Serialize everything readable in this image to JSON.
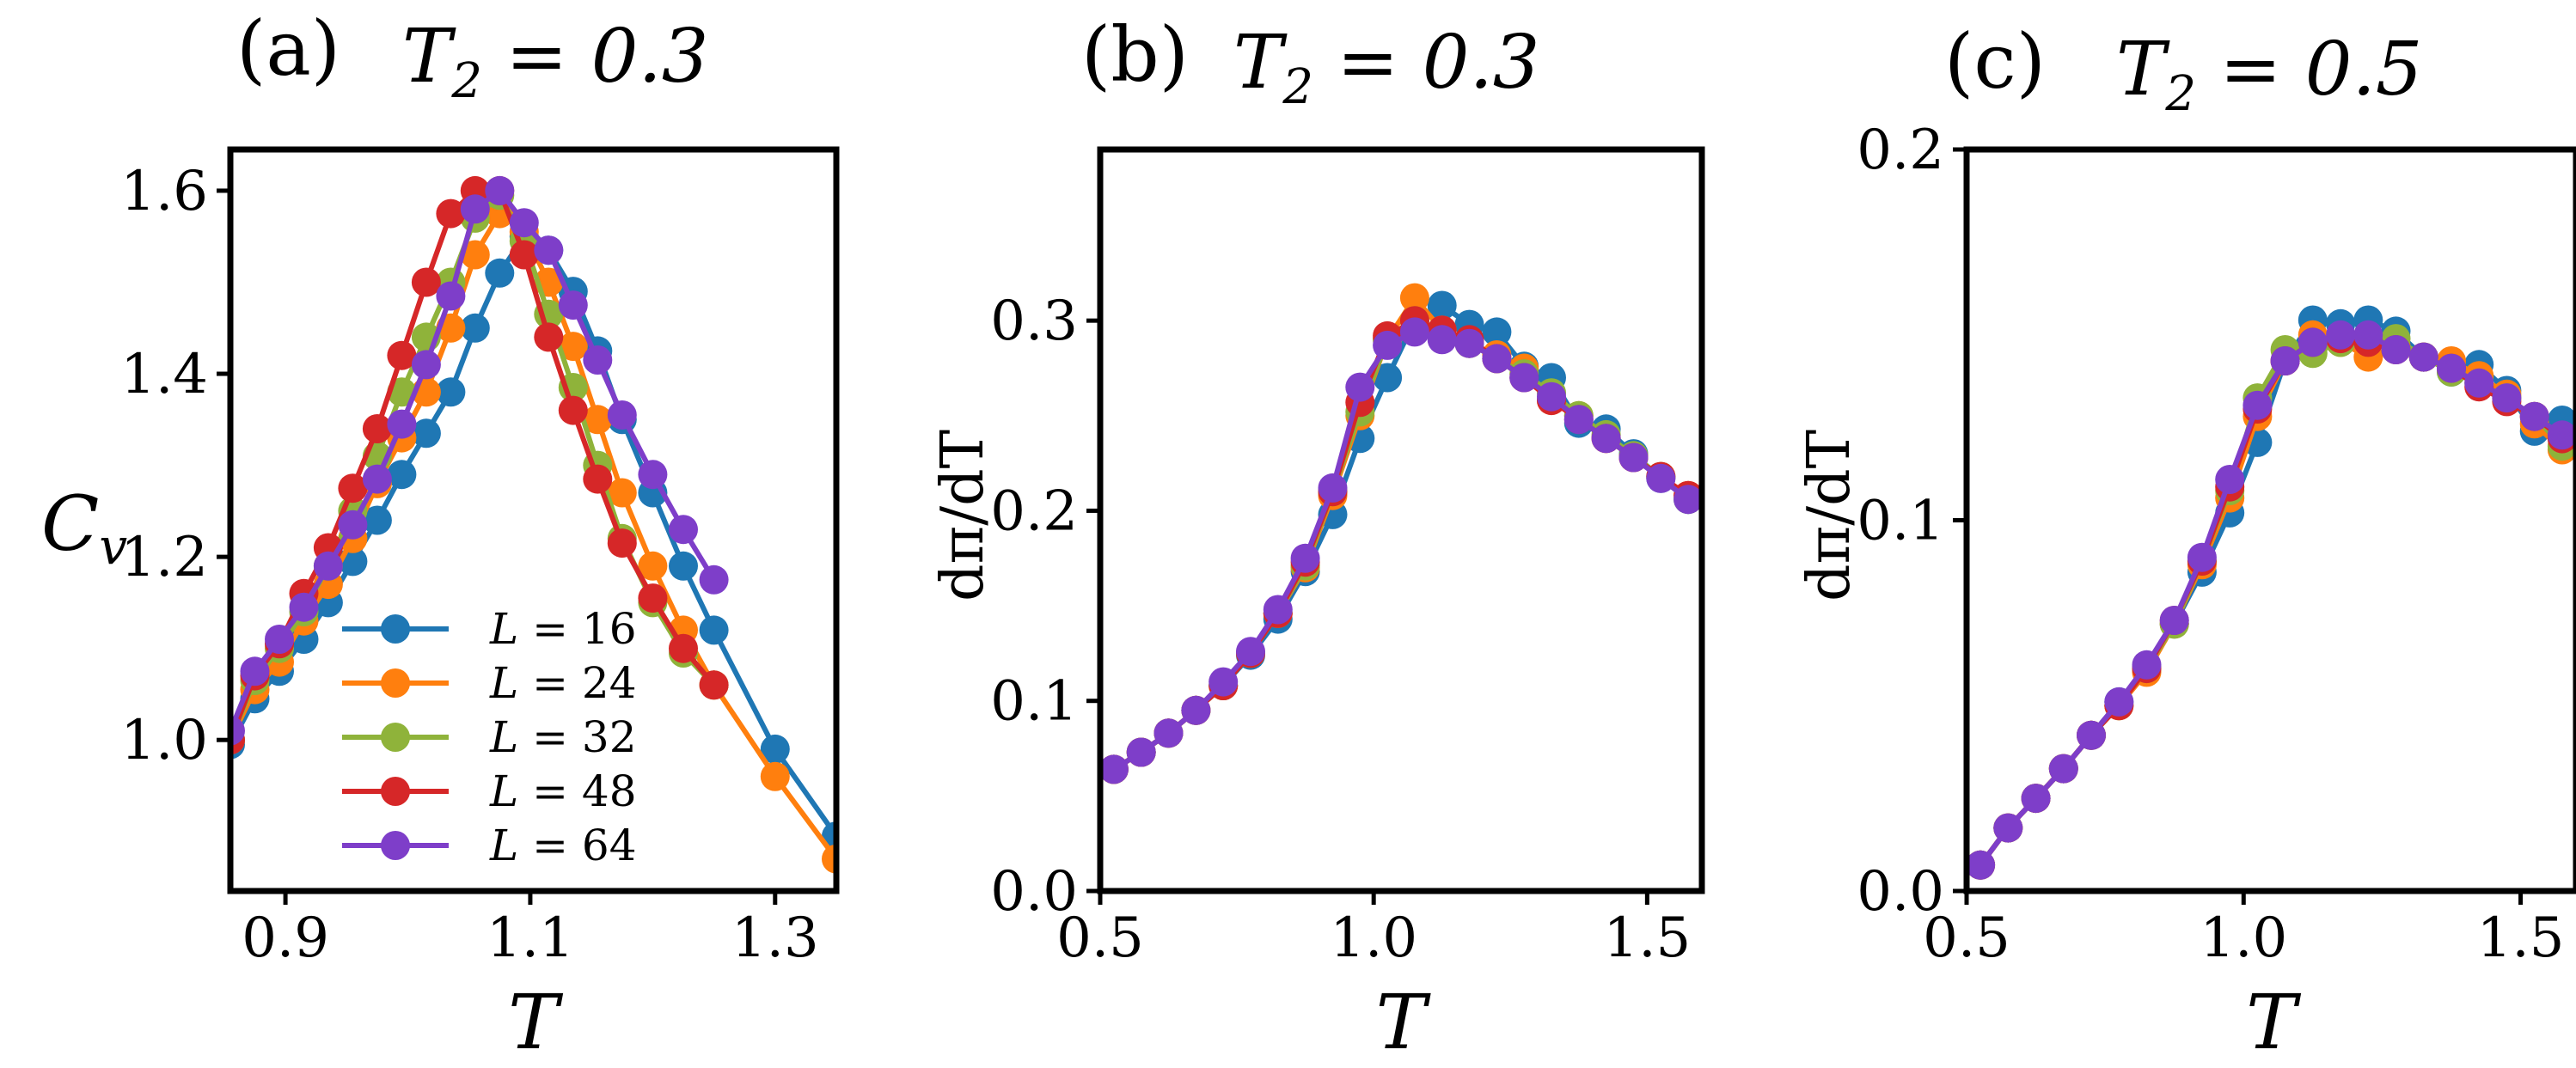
{
  "chart_data": [
    {
      "type": "line",
      "panel": "(a)",
      "title": "T_2 = 0.3",
      "title_parts": {
        "letter": "(a)",
        "main": "T",
        "sub": "2",
        "rest": " = 0.3"
      },
      "xlabel": "T",
      "ylabel": "C_v",
      "ylabel_parts": {
        "main": "C",
        "sub": "v"
      },
      "xlim": [
        0.855,
        1.35
      ],
      "ylim": [
        0.835,
        1.645
      ],
      "xticks": [
        0.9,
        1.1,
        1.3
      ],
      "xtick_labels": [
        "0.9",
        "1.1",
        "1.3"
      ],
      "yticks": [
        1.0,
        1.2,
        1.4,
        1.6
      ],
      "ytick_labels": [
        "1.0",
        "1.2",
        "1.4",
        "1.6"
      ],
      "legend_position": "lower-left",
      "series": [
        {
          "name": "L = 16",
          "legend": {
            "main": "L",
            "rest": " = 16"
          },
          "color": "#1f77b4",
          "x": [
            0.855,
            0.875,
            0.895,
            0.915,
            0.935,
            0.955,
            0.975,
            0.995,
            1.015,
            1.035,
            1.055,
            1.075,
            1.095,
            1.115,
            1.135,
            1.155,
            1.175,
            1.2,
            1.225,
            1.25,
            1.3,
            1.35
          ],
          "y": [
            0.995,
            1.045,
            1.075,
            1.11,
            1.15,
            1.195,
            1.24,
            1.29,
            1.335,
            1.38,
            1.45,
            1.51,
            1.55,
            1.535,
            1.49,
            1.425,
            1.35,
            1.27,
            1.19,
            1.12,
            0.99,
            0.895
          ]
        },
        {
          "name": "L = 24",
          "legend": {
            "main": "L",
            "rest": " = 24"
          },
          "color": "#ff7f0e",
          "x": [
            0.855,
            0.875,
            0.895,
            0.915,
            0.935,
            0.955,
            0.975,
            0.995,
            1.015,
            1.035,
            1.055,
            1.075,
            1.095,
            1.115,
            1.135,
            1.155,
            1.175,
            1.2,
            1.225,
            1.25,
            1.3,
            1.35
          ],
          "y": [
            1.0,
            1.055,
            1.085,
            1.13,
            1.17,
            1.22,
            1.28,
            1.33,
            1.38,
            1.45,
            1.53,
            1.575,
            1.555,
            1.5,
            1.43,
            1.35,
            1.27,
            1.19,
            1.12,
            1.06,
            0.96,
            0.87
          ]
        },
        {
          "name": "L = 32",
          "legend": {
            "main": "L",
            "rest": " = 32"
          },
          "color": "#8fb33a",
          "x": [
            0.855,
            0.875,
            0.895,
            0.915,
            0.935,
            0.955,
            0.975,
            0.995,
            1.015,
            1.035,
            1.055,
            1.075,
            1.095,
            1.115,
            1.135,
            1.155,
            1.175,
            1.2,
            1.225,
            1.25
          ],
          "y": [
            1.0,
            1.065,
            1.1,
            1.14,
            1.19,
            1.25,
            1.31,
            1.38,
            1.44,
            1.5,
            1.57,
            1.595,
            1.545,
            1.465,
            1.385,
            1.3,
            1.22,
            1.15,
            1.095,
            1.06
          ]
        },
        {
          "name": "L = 48",
          "legend": {
            "main": "L",
            "rest": " = 48"
          },
          "color": "#d62728",
          "x": [
            0.855,
            0.875,
            0.895,
            0.915,
            0.935,
            0.955,
            0.975,
            0.995,
            1.015,
            1.035,
            1.055,
            1.075,
            1.095,
            1.115,
            1.135,
            1.155,
            1.175,
            1.2,
            1.225,
            1.25
          ],
          "y": [
            1.0,
            1.07,
            1.105,
            1.16,
            1.21,
            1.275,
            1.34,
            1.42,
            1.5,
            1.575,
            1.6,
            1.6,
            1.53,
            1.44,
            1.36,
            1.285,
            1.215,
            1.155,
            1.1,
            1.06
          ]
        },
        {
          "name": "L = 64",
          "legend": {
            "main": "L",
            "rest": " = 64"
          },
          "color": "#7e3ec9",
          "x": [
            0.855,
            0.875,
            0.895,
            0.915,
            0.935,
            0.955,
            0.975,
            0.995,
            1.015,
            1.035,
            1.055,
            1.075,
            1.095,
            1.115,
            1.135,
            1.155,
            1.175,
            1.2,
            1.225,
            1.25
          ],
          "y": [
            1.01,
            1.075,
            1.11,
            1.145,
            1.19,
            1.235,
            1.285,
            1.345,
            1.41,
            1.485,
            1.58,
            1.6,
            1.565,
            1.535,
            1.475,
            1.415,
            1.355,
            1.29,
            1.23,
            1.175
          ]
        }
      ]
    },
    {
      "type": "line",
      "panel": "(b)",
      "title": "T_2 = 0.3",
      "title_parts": {
        "letter": "(b)",
        "main": "T",
        "sub": "2",
        "rest": " = 0.3"
      },
      "xlabel": "T",
      "ylabel": "dπ/dT",
      "xlim": [
        0.5,
        1.6
      ],
      "ylim": [
        0.0,
        0.39
      ],
      "xticks": [
        0.5,
        1.0,
        1.5
      ],
      "xtick_labels": [
        "0.5",
        "1.0",
        "1.5"
      ],
      "yticks": [
        0.0,
        0.1,
        0.2,
        0.3
      ],
      "ytick_labels": [
        "0.0",
        "0.1",
        "0.2",
        "0.3"
      ],
      "series": [
        {
          "name": "L = 16",
          "color": "#1f77b4",
          "x": [
            0.525,
            0.575,
            0.625,
            0.675,
            0.725,
            0.775,
            0.825,
            0.875,
            0.925,
            0.975,
            1.025,
            1.075,
            1.125,
            1.175,
            1.225,
            1.275,
            1.325,
            1.375,
            1.425,
            1.475,
            1.525,
            1.575
          ],
          "y": [
            0.064,
            0.073,
            0.083,
            0.095,
            0.108,
            0.124,
            0.143,
            0.168,
            0.198,
            0.238,
            0.27,
            0.3,
            0.308,
            0.298,
            0.294,
            0.276,
            0.27,
            0.246,
            0.243,
            0.23,
            0.217,
            0.206
          ]
        },
        {
          "name": "L = 24",
          "color": "#ff7f0e",
          "x": [
            0.525,
            0.575,
            0.625,
            0.675,
            0.725,
            0.775,
            0.825,
            0.875,
            0.925,
            0.975,
            1.025,
            1.075,
            1.125,
            1.175,
            1.225,
            1.275,
            1.325,
            1.375,
            1.425,
            1.475,
            1.525,
            1.575
          ],
          "y": [
            0.064,
            0.073,
            0.083,
            0.095,
            0.108,
            0.125,
            0.146,
            0.17,
            0.208,
            0.25,
            0.29,
            0.312,
            0.295,
            0.288,
            0.282,
            0.275,
            0.258,
            0.25,
            0.238,
            0.228,
            0.218,
            0.208
          ]
        },
        {
          "name": "L = 32",
          "color": "#8fb33a",
          "x": [
            0.525,
            0.575,
            0.625,
            0.675,
            0.725,
            0.775,
            0.825,
            0.875,
            0.925,
            0.975,
            1.025,
            1.075,
            1.125,
            1.175,
            1.225,
            1.275,
            1.325,
            1.375,
            1.425,
            1.475,
            1.525,
            1.575
          ],
          "y": [
            0.064,
            0.073,
            0.083,
            0.095,
            0.108,
            0.125,
            0.146,
            0.171,
            0.21,
            0.252,
            0.29,
            0.3,
            0.292,
            0.288,
            0.28,
            0.272,
            0.262,
            0.25,
            0.24,
            0.229,
            0.218,
            0.206
          ]
        },
        {
          "name": "L = 48",
          "color": "#d62728",
          "x": [
            0.525,
            0.575,
            0.625,
            0.675,
            0.725,
            0.775,
            0.825,
            0.875,
            0.925,
            0.975,
            1.025,
            1.075,
            1.125,
            1.175,
            1.225,
            1.275,
            1.325,
            1.375,
            1.425,
            1.475,
            1.525,
            1.575
          ],
          "y": [
            0.064,
            0.073,
            0.083,
            0.095,
            0.108,
            0.125,
            0.146,
            0.173,
            0.21,
            0.257,
            0.292,
            0.3,
            0.295,
            0.29,
            0.28,
            0.27,
            0.258,
            0.248,
            0.238,
            0.228,
            0.218,
            0.208
          ]
        },
        {
          "name": "L = 64",
          "color": "#7e3ec9",
          "x": [
            0.525,
            0.575,
            0.625,
            0.675,
            0.725,
            0.775,
            0.825,
            0.875,
            0.925,
            0.975,
            1.025,
            1.075,
            1.125,
            1.175,
            1.225,
            1.275,
            1.325,
            1.375,
            1.425,
            1.475,
            1.525,
            1.575
          ],
          "y": [
            0.064,
            0.073,
            0.083,
            0.095,
            0.11,
            0.126,
            0.148,
            0.175,
            0.212,
            0.265,
            0.287,
            0.294,
            0.29,
            0.288,
            0.28,
            0.27,
            0.26,
            0.248,
            0.238,
            0.228,
            0.217,
            0.206
          ]
        }
      ]
    },
    {
      "type": "line",
      "panel": "(c)",
      "title": "T_2 = 0.5",
      "title_parts": {
        "letter": "(c)",
        "main": "T",
        "sub": "2",
        "rest": " = 0.5"
      },
      "xlabel": "T",
      "ylabel": "dπ/dT",
      "xlim": [
        0.5,
        1.6
      ],
      "ylim": [
        0.0,
        0.2
      ],
      "xticks": [
        0.5,
        1.0,
        1.5
      ],
      "xtick_labels": [
        "0.5",
        "1.0",
        "1.5"
      ],
      "yticks": [
        0.0,
        0.1,
        0.2
      ],
      "ytick_labels": [
        "0.0",
        "0.1",
        "0.2"
      ],
      "series": [
        {
          "name": "L = 16",
          "color": "#1f77b4",
          "x": [
            0.525,
            0.575,
            0.625,
            0.675,
            0.725,
            0.775,
            0.825,
            0.875,
            0.925,
            0.975,
            1.025,
            1.075,
            1.125,
            1.175,
            1.225,
            1.275,
            1.325,
            1.375,
            1.425,
            1.475,
            1.525,
            1.575
          ],
          "y": [
            0.007,
            0.017,
            0.025,
            0.033,
            0.042,
            0.051,
            0.06,
            0.072,
            0.086,
            0.102,
            0.121,
            0.143,
            0.154,
            0.153,
            0.154,
            0.151,
            0.144,
            0.14,
            0.142,
            0.135,
            0.124,
            0.127
          ]
        },
        {
          "name": "L = 24",
          "color": "#ff7f0e",
          "x": [
            0.525,
            0.575,
            0.625,
            0.675,
            0.725,
            0.775,
            0.825,
            0.875,
            0.925,
            0.975,
            1.025,
            1.075,
            1.125,
            1.175,
            1.225,
            1.275,
            1.325,
            1.375,
            1.425,
            1.475,
            1.525,
            1.575
          ],
          "y": [
            0.007,
            0.017,
            0.025,
            0.033,
            0.042,
            0.05,
            0.059,
            0.072,
            0.088,
            0.106,
            0.128,
            0.143,
            0.15,
            0.148,
            0.144,
            0.147,
            0.144,
            0.143,
            0.139,
            0.134,
            0.126,
            0.119
          ]
        },
        {
          "name": "L = 32",
          "color": "#8fb33a",
          "x": [
            0.525,
            0.575,
            0.625,
            0.675,
            0.725,
            0.775,
            0.825,
            0.875,
            0.925,
            0.975,
            1.025,
            1.075,
            1.125,
            1.175,
            1.225,
            1.275,
            1.325,
            1.375,
            1.425,
            1.475,
            1.525,
            1.575
          ],
          "y": [
            0.007,
            0.017,
            0.025,
            0.033,
            0.042,
            0.05,
            0.06,
            0.072,
            0.089,
            0.108,
            0.133,
            0.146,
            0.145,
            0.148,
            0.149,
            0.149,
            0.144,
            0.14,
            0.137,
            0.133,
            0.128,
            0.12
          ]
        },
        {
          "name": "L = 48",
          "color": "#d62728",
          "x": [
            0.525,
            0.575,
            0.625,
            0.675,
            0.725,
            0.775,
            0.825,
            0.875,
            0.925,
            0.975,
            1.025,
            1.075,
            1.125,
            1.175,
            1.225,
            1.275,
            1.325,
            1.375,
            1.425,
            1.475,
            1.525,
            1.575
          ],
          "y": [
            0.007,
            0.017,
            0.025,
            0.033,
            0.042,
            0.05,
            0.06,
            0.073,
            0.089,
            0.109,
            0.13,
            0.143,
            0.148,
            0.149,
            0.148,
            0.146,
            0.144,
            0.141,
            0.136,
            0.132,
            0.128,
            0.122
          ]
        },
        {
          "name": "L = 64",
          "color": "#7e3ec9",
          "x": [
            0.525,
            0.575,
            0.625,
            0.675,
            0.725,
            0.775,
            0.825,
            0.875,
            0.925,
            0.975,
            1.025,
            1.075,
            1.125,
            1.175,
            1.225,
            1.275,
            1.325,
            1.375,
            1.425,
            1.475,
            1.525,
            1.575
          ],
          "y": [
            0.007,
            0.017,
            0.025,
            0.033,
            0.042,
            0.051,
            0.061,
            0.073,
            0.09,
            0.111,
            0.131,
            0.143,
            0.148,
            0.15,
            0.15,
            0.146,
            0.144,
            0.141,
            0.137,
            0.133,
            0.128,
            0.123
          ]
        }
      ]
    }
  ]
}
